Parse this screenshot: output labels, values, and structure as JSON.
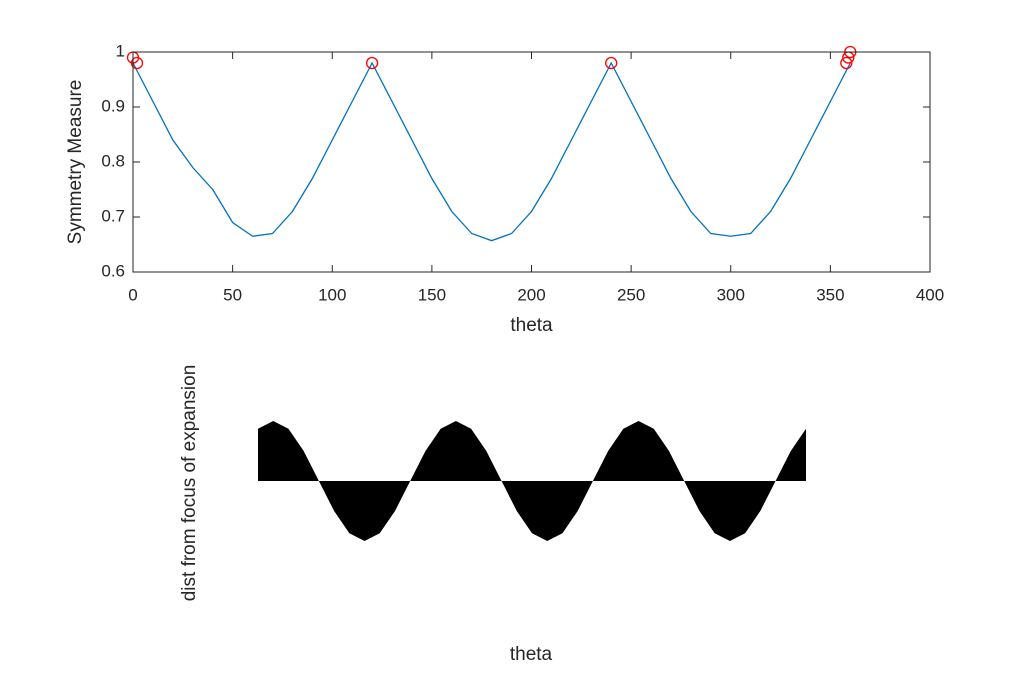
{
  "chart_data": [
    {
      "type": "line",
      "ylabel": "Symmetry Measure",
      "xlabel": "theta",
      "xlim": [
        0,
        400
      ],
      "ylim": [
        0.6,
        1
      ],
      "xticks": [
        0,
        50,
        100,
        150,
        200,
        250,
        300,
        350,
        400
      ],
      "yticks": [
        0.6,
        0.7,
        0.8,
        0.9,
        1
      ],
      "box": true,
      "series": [
        {
          "color": "#0072bd",
          "style": "line",
          "x": [
            0,
            10,
            20,
            30,
            40,
            50,
            60,
            70,
            80,
            90,
            100,
            110,
            120,
            130,
            140,
            150,
            160,
            170,
            180,
            190,
            200,
            210,
            220,
            230,
            240,
            250,
            260,
            270,
            280,
            290,
            300,
            310,
            320,
            330,
            340,
            350,
            360
          ],
          "values": [
            0.98,
            0.91,
            0.84,
            0.79,
            0.75,
            0.69,
            0.665,
            0.67,
            0.71,
            0.77,
            0.84,
            0.91,
            0.98,
            0.91,
            0.84,
            0.77,
            0.71,
            0.67,
            0.657,
            0.67,
            0.71,
            0.77,
            0.84,
            0.91,
            0.98,
            0.91,
            0.84,
            0.77,
            0.71,
            0.67,
            0.665,
            0.67,
            0.71,
            0.77,
            0.84,
            0.91,
            0.98
          ]
        },
        {
          "color": "#ff0000",
          "style": "marker",
          "x": [
            0,
            2,
            120,
            240,
            358,
            359,
            360
          ],
          "values": [
            0.99,
            0.98,
            0.98,
            0.98,
            0.98,
            0.99,
            1.0
          ]
        }
      ]
    },
    {
      "type": "area",
      "xlabel": "theta",
      "ylabel": "dist from focus of expansion",
      "xlim": [
        0,
        360
      ],
      "ylim": [
        -1,
        1
      ],
      "color": "#000000",
      "x": [
        0,
        10,
        20,
        30,
        40,
        50,
        60,
        70,
        80,
        90,
        100,
        110,
        120,
        130,
        140,
        150,
        160,
        170,
        180,
        190,
        200,
        210,
        220,
        230,
        240,
        250,
        260,
        270,
        280,
        290,
        300,
        310,
        320,
        330,
        340,
        350,
        360
      ],
      "values": [
        0.87,
        1,
        0.87,
        0.5,
        0,
        -0.5,
        -0.87,
        -1,
        -0.87,
        -0.5,
        0,
        0.5,
        0.87,
        1,
        0.87,
        0.5,
        0,
        -0.5,
        -0.87,
        -1,
        -0.87,
        -0.5,
        0,
        0.5,
        0.87,
        1,
        0.87,
        0.5,
        0,
        -0.5,
        -0.87,
        -1,
        -0.87,
        -0.5,
        0,
        0.5,
        0.87
      ]
    }
  ]
}
